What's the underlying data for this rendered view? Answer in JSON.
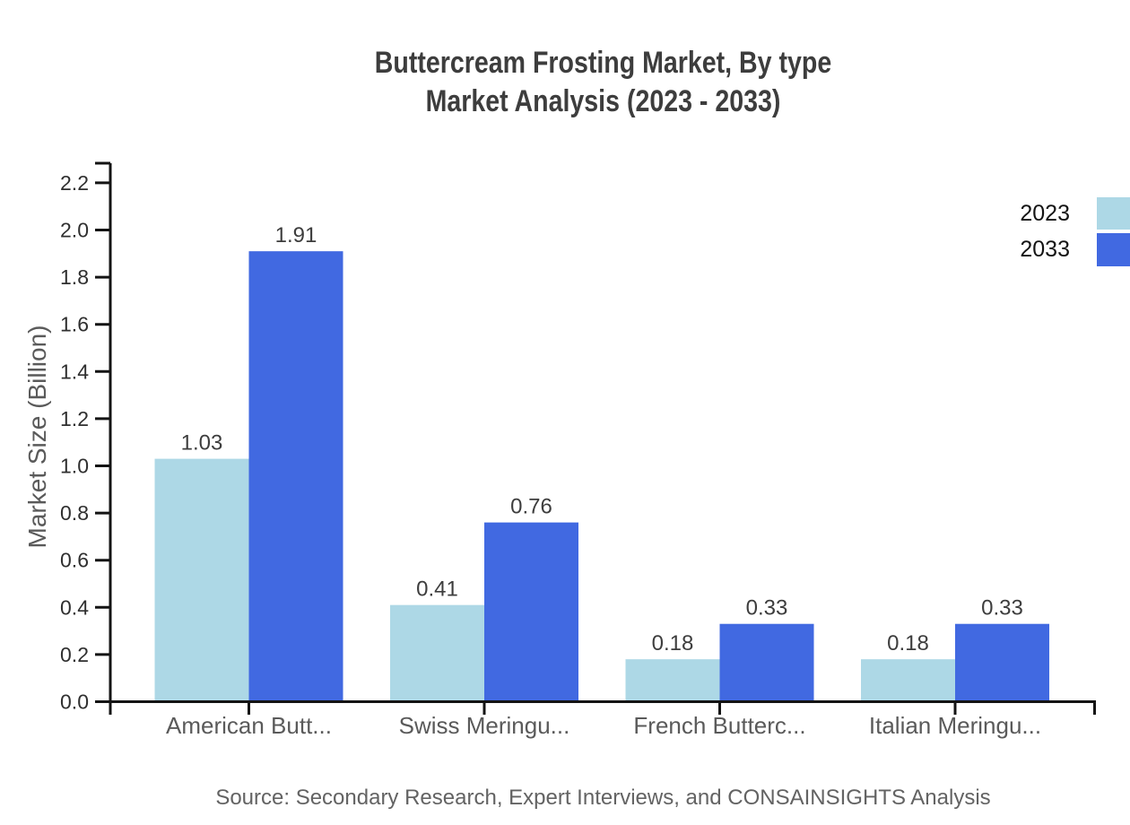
{
  "title": {
    "line1": "Buttercream Frosting Market, By type",
    "line2": "Market Analysis (2023 - 2033)"
  },
  "source_note": "Source: Secondary Research, Expert Interviews, and CONSAINSIGHTS Analysis",
  "chart_data": {
    "type": "bar",
    "title": "Buttercream Frosting Market, By type — Market Analysis (2023 - 2033)",
    "categories": [
      "American Butt...",
      "Swiss Meringu...",
      "French Butterc...",
      "Italian Meringu..."
    ],
    "series": [
      {
        "name": "2023",
        "color": "#ADD8E6",
        "values": [
          1.03,
          0.41,
          0.18,
          0.18
        ],
        "labels": [
          "1.03",
          "0.41",
          "0.18",
          "0.18"
        ]
      },
      {
        "name": "2033",
        "color": "#4169E1",
        "values": [
          1.91,
          0.76,
          0.33,
          0.33
        ],
        "labels": [
          "1.91",
          "0.76",
          "0.33",
          "0.33"
        ]
      }
    ],
    "xlabel": "",
    "ylabel": "Market Size (Billion)",
    "ylim": [
      0,
      2.3
    ],
    "yticks": [
      "0.0",
      "0.2",
      "0.4",
      "0.6",
      "0.8",
      "1.0",
      "1.2",
      "1.4",
      "1.6",
      "1.8",
      "2.0",
      "2.2"
    ],
    "grid": false,
    "legend_position": "top-right"
  },
  "colors": {
    "axis": "#141414",
    "tick_label": "#2f2f2f",
    "category_label": "#5a5a5a",
    "value_label": "#3d3d3d",
    "title_text": "#3d3d3d",
    "source_text": "#636363"
  }
}
